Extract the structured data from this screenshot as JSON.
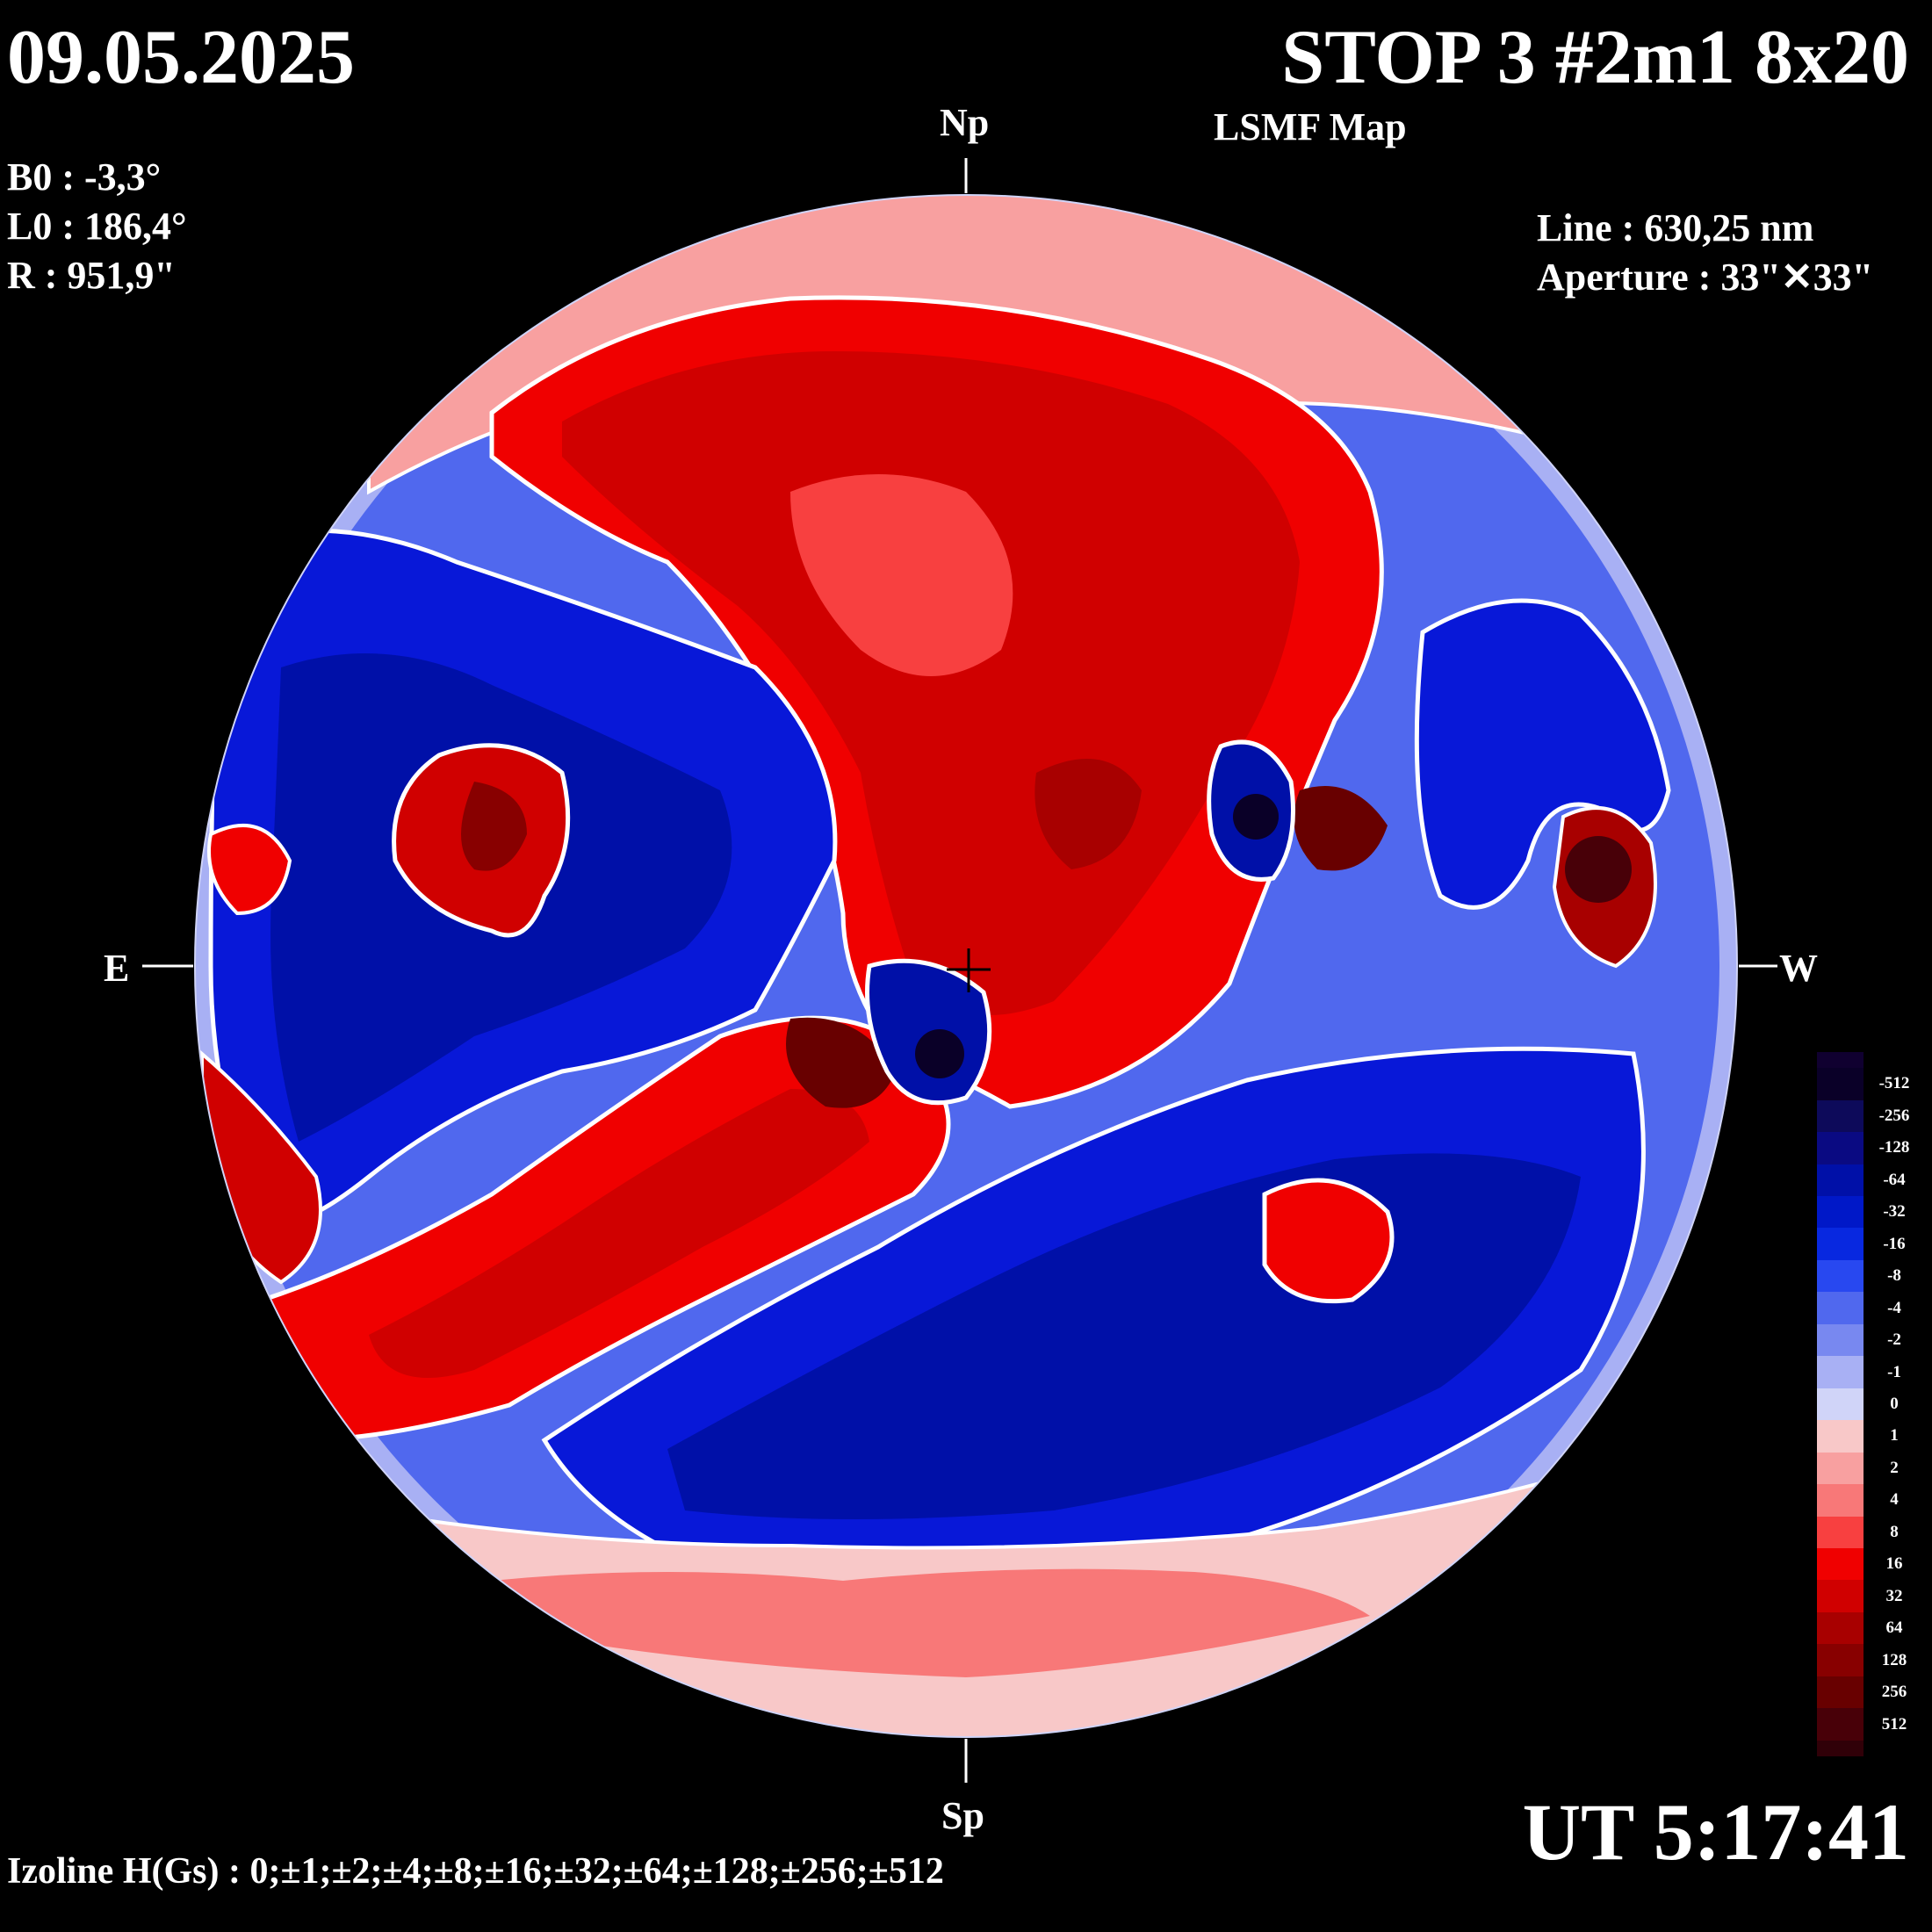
{
  "header": {
    "date": "09.05.2025",
    "title": "STOP 3 #2m1 8x20",
    "subtitle": "LSMF  Map"
  },
  "params": {
    "b0": "B0 : -3,3°",
    "l0": "L0 : 186,4°",
    "r": "R  : 951,9\"",
    "line": "Line :  630,25 nm",
    "aperture": "Aperture : 33\"✕33\""
  },
  "directions": {
    "north": "Np",
    "south": "Sp",
    "east": "E",
    "west": "W"
  },
  "time": "UT 5:17:41",
  "izoline": "Izoline H(Gs) : 0;±1;±2;±4;±8;±16;±32;±64;±128;±256;±512",
  "colorbar": {
    "levels": [
      {
        "label": "-512",
        "color": "#0a0028"
      },
      {
        "label": "-256",
        "color": "#0d0a5a"
      },
      {
        "label": "-128",
        "color": "#0a0a82"
      },
      {
        "label": "-64",
        "color": "#0010a8"
      },
      {
        "label": "-32",
        "color": "#0018c8"
      },
      {
        "label": "-16",
        "color": "#0828e0"
      },
      {
        "label": "-8",
        "color": "#2848f0"
      },
      {
        "label": "-4",
        "color": "#5068ee"
      },
      {
        "label": "-2",
        "color": "#7888f0"
      },
      {
        "label": "-1",
        "color": "#a8b0f4"
      },
      {
        "label": "0",
        "color": "#d0d4f8"
      },
      {
        "label": "1",
        "color": "#f8c8c8"
      },
      {
        "label": "2",
        "color": "#f8a0a0"
      },
      {
        "label": "4",
        "color": "#f87878"
      },
      {
        "label": "8",
        "color": "#f84040"
      },
      {
        "label": "16",
        "color": "#f00000"
      },
      {
        "label": "32",
        "color": "#d00000"
      },
      {
        "label": "64",
        "color": "#a80000"
      },
      {
        "label": "128",
        "color": "#880000"
      },
      {
        "label": "256",
        "color": "#680000"
      },
      {
        "label": "512",
        "color": "#480008"
      }
    ],
    "extra_top": "#100030",
    "extra_bottom": "#300008"
  },
  "map_colors": {
    "background": "#000000",
    "contour_zero": "#ffffff",
    "strong_neg": "#0000b0",
    "mid_neg": "#0818d8",
    "weak_neg": "#5068ee",
    "faint_neg": "#a8b0f4",
    "faint_pos": "#f8c8c8",
    "weak_pos": "#f87878",
    "mid_pos": "#f00000",
    "strong_pos": "#b00000",
    "core_pos": "#600000",
    "core_neg": "#0a0028"
  }
}
